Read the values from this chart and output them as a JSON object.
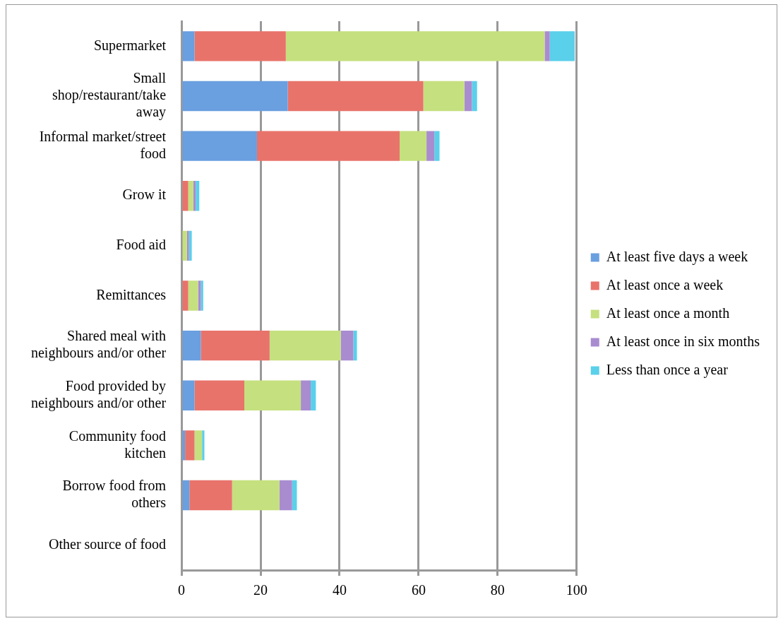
{
  "chart_data": {
    "type": "bar",
    "orientation": "horizontal",
    "stacked": true,
    "categories": [
      "Supermarket",
      "Small shop/restaurant/take away",
      "Informal market/street food",
      "Grow it",
      "Food aid",
      "Remittances",
      "Shared meal with neighbours and/or other",
      "Food provided by neighbours and/or other",
      "Community food kitchen",
      "Borrow food from others",
      "Other source of food"
    ],
    "series": [
      {
        "name": "At least five days a week",
        "color": "#6a9fe0",
        "values": [
          3.3,
          26.9,
          19.1,
          0,
          0,
          0,
          4.9,
          3.3,
          0.9,
          2.0,
          0
        ]
      },
      {
        "name": "At least once a week",
        "color": "#e8736b",
        "values": [
          23.1,
          34.3,
          36.1,
          1.7,
          0,
          1.7,
          17.4,
          12.6,
          2.4,
          10.8,
          0
        ]
      },
      {
        "name": "At least once a month",
        "color": "#c5e07f",
        "values": [
          65.5,
          10.4,
          6.8,
          1.3,
          1.4,
          2.5,
          18.0,
          14.3,
          1.9,
          12.0,
          0
        ]
      },
      {
        "name": "At least once in six months",
        "color": "#a98cd0",
        "values": [
          1.3,
          1.9,
          2.0,
          0.6,
          0.5,
          0.7,
          3.2,
          2.5,
          0,
          3.2,
          0
        ]
      },
      {
        "name": "Less than once a year",
        "color": "#5ad0ea",
        "values": [
          6.3,
          1.3,
          1.3,
          0.9,
          0.7,
          0.6,
          0.9,
          1.3,
          0.6,
          1.2,
          null
        ]
      }
    ],
    "xlim": [
      0,
      100
    ],
    "xticks": [
      0,
      20,
      40,
      60,
      80,
      100
    ],
    "grid": "x",
    "legend": "right"
  }
}
